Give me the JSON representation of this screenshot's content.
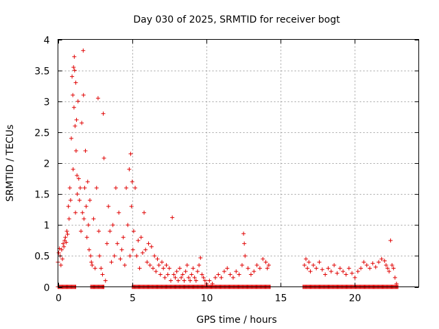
{
  "chart_data": {
    "type": "scatter",
    "title": "Day 030 of 2025, SRMTID for receiver bogt",
    "xlabel": "GPS time / hours",
    "ylabel": "SRMTID / TECUs",
    "xlim": [
      0,
      24.3
    ],
    "ylim": [
      0,
      4
    ],
    "x_ticks": [
      0,
      5,
      10,
      15,
      20
    ],
    "y_ticks": [
      0,
      0.5,
      1,
      1.5,
      2,
      2.5,
      3,
      3.5,
      4
    ],
    "y_tick_labels": [
      "0",
      "0.5",
      "1",
      "1.5",
      "2",
      "2.5",
      "3",
      "3.5",
      "4"
    ],
    "grid": true,
    "marker": "+",
    "color": "#e00000",
    "series": [
      {
        "name": "SRMTID",
        "points": [
          [
            0.0,
            0.4
          ],
          [
            0.05,
            0.55
          ],
          [
            0.1,
            0.62
          ],
          [
            0.15,
            0.5
          ],
          [
            0.2,
            0.35
          ],
          [
            0.25,
            0.6
          ],
          [
            0.3,
            0.45
          ],
          [
            0.35,
            0.7
          ],
          [
            0.4,
            0.65
          ],
          [
            0.45,
            0.75
          ],
          [
            0.5,
            0.8
          ],
          [
            0.55,
            0.72
          ],
          [
            0.6,
            0.9
          ],
          [
            0.65,
            0.85
          ],
          [
            0.7,
            1.3
          ],
          [
            0.75,
            1.1
          ],
          [
            0.8,
            1.6
          ],
          [
            0.85,
            1.4
          ],
          [
            0.9,
            2.4
          ],
          [
            0.95,
            3.4
          ],
          [
            1.0,
            3.1
          ],
          [
            1.02,
            1.9
          ],
          [
            1.05,
            3.55
          ],
          [
            1.08,
            2.9
          ],
          [
            1.1,
            3.72
          ],
          [
            1.12,
            3.5
          ],
          [
            1.15,
            2.6
          ],
          [
            1.18,
            1.2
          ],
          [
            1.2,
            3.3
          ],
          [
            1.22,
            2.2
          ],
          [
            1.25,
            2.7
          ],
          [
            1.28,
            1.8
          ],
          [
            1.3,
            1.5
          ],
          [
            1.35,
            3.0
          ],
          [
            1.4,
            1.75
          ],
          [
            1.45,
            1.4
          ],
          [
            1.5,
            1.6
          ],
          [
            1.55,
            0.9
          ],
          [
            1.6,
            2.65
          ],
          [
            1.65,
            1.2
          ],
          [
            1.7,
            3.82
          ],
          [
            1.72,
            3.1
          ],
          [
            1.75,
            1.1
          ],
          [
            1.8,
            1.6
          ],
          [
            1.85,
            2.2
          ],
          [
            1.9,
            1.3
          ],
          [
            1.95,
            0.8
          ],
          [
            2.0,
            1.7
          ],
          [
            2.05,
            1.0
          ],
          [
            2.1,
            0.6
          ],
          [
            2.15,
            1.4
          ],
          [
            2.2,
            0.5
          ],
          [
            2.25,
            0.4
          ],
          [
            2.3,
            0.35
          ],
          [
            2.4,
            1.1
          ],
          [
            2.5,
            0.3
          ],
          [
            2.6,
            1.6
          ],
          [
            2.7,
            3.05
          ],
          [
            2.75,
            0.9
          ],
          [
            2.8,
            0.5
          ],
          [
            2.9,
            0.3
          ],
          [
            3.0,
            0.2
          ],
          [
            3.05,
            2.8
          ],
          [
            3.1,
            2.08
          ],
          [
            3.2,
            0.1
          ],
          [
            3.3,
            0.7
          ],
          [
            3.4,
            1.3
          ],
          [
            3.5,
            0.9
          ],
          [
            3.6,
            0.4
          ],
          [
            3.7,
            1.0
          ],
          [
            3.8,
            0.5
          ],
          [
            3.9,
            1.6
          ],
          [
            4.0,
            0.7
          ],
          [
            4.1,
            1.2
          ],
          [
            4.2,
            0.45
          ],
          [
            4.3,
            0.6
          ],
          [
            4.4,
            0.8
          ],
          [
            4.5,
            0.35
          ],
          [
            4.6,
            1.6
          ],
          [
            4.7,
            1.0
          ],
          [
            4.8,
            1.9
          ],
          [
            4.85,
            0.5
          ],
          [
            4.9,
            2.15
          ],
          [
            4.95,
            1.3
          ],
          [
            5.0,
            1.7
          ],
          [
            5.05,
            0.6
          ],
          [
            5.1,
            0.9
          ],
          [
            5.2,
            1.6
          ],
          [
            5.3,
            0.5
          ],
          [
            5.4,
            0.75
          ],
          [
            5.5,
            0.3
          ],
          [
            5.6,
            0.8
          ],
          [
            5.7,
            0.55
          ],
          [
            5.8,
            1.2
          ],
          [
            5.9,
            0.6
          ],
          [
            6.0,
            0.4
          ],
          [
            6.1,
            0.7
          ],
          [
            6.2,
            0.35
          ],
          [
            6.3,
            0.65
          ],
          [
            6.4,
            0.3
          ],
          [
            6.5,
            0.5
          ],
          [
            6.6,
            0.25
          ],
          [
            6.7,
            0.45
          ],
          [
            6.8,
            0.35
          ],
          [
            6.9,
            0.2
          ],
          [
            7.0,
            0.4
          ],
          [
            7.1,
            0.3
          ],
          [
            7.2,
            0.15
          ],
          [
            7.3,
            0.35
          ],
          [
            7.4,
            0.2
          ],
          [
            7.5,
            0.3
          ],
          [
            7.6,
            0.1
          ],
          [
            7.7,
            1.12
          ],
          [
            7.8,
            0.2
          ],
          [
            7.9,
            0.15
          ],
          [
            8.0,
            0.25
          ],
          [
            8.1,
            0.1
          ],
          [
            8.2,
            0.3
          ],
          [
            8.3,
            0.15
          ],
          [
            8.4,
            0.2
          ],
          [
            8.5,
            0.1
          ],
          [
            8.6,
            0.25
          ],
          [
            8.7,
            0.35
          ],
          [
            8.8,
            0.15
          ],
          [
            8.9,
            0.1
          ],
          [
            9.0,
            0.2
          ],
          [
            9.1,
            0.3
          ],
          [
            9.2,
            0.15
          ],
          [
            9.3,
            0.1
          ],
          [
            9.4,
            0.25
          ],
          [
            9.5,
            0.35
          ],
          [
            9.6,
            0.47
          ],
          [
            9.7,
            0.2
          ],
          [
            9.8,
            0.15
          ],
          [
            9.9,
            0.1
          ],
          [
            10.0,
            0.05
          ],
          [
            10.2,
            0.1
          ],
          [
            10.4,
            0.05
          ],
          [
            10.6,
            0.15
          ],
          [
            10.8,
            0.2
          ],
          [
            11.0,
            0.15
          ],
          [
            11.2,
            0.25
          ],
          [
            11.4,
            0.3
          ],
          [
            11.6,
            0.2
          ],
          [
            11.8,
            0.15
          ],
          [
            12.0,
            0.25
          ],
          [
            12.2,
            0.2
          ],
          [
            12.4,
            0.35
          ],
          [
            12.5,
            0.86
          ],
          [
            12.55,
            0.7
          ],
          [
            12.6,
            0.5
          ],
          [
            12.8,
            0.3
          ],
          [
            13.0,
            0.2
          ],
          [
            13.2,
            0.25
          ],
          [
            13.4,
            0.35
          ],
          [
            13.6,
            0.3
          ],
          [
            13.8,
            0.45
          ],
          [
            14.0,
            0.4
          ],
          [
            14.1,
            0.3
          ],
          [
            14.2,
            0.35
          ],
          [
            16.6,
            0.35
          ],
          [
            16.7,
            0.45
          ],
          [
            16.8,
            0.3
          ],
          [
            16.9,
            0.4
          ],
          [
            17.0,
            0.25
          ],
          [
            17.2,
            0.35
          ],
          [
            17.4,
            0.3
          ],
          [
            17.6,
            0.4
          ],
          [
            17.8,
            0.28
          ],
          [
            18.0,
            0.2
          ],
          [
            18.2,
            0.3
          ],
          [
            18.4,
            0.25
          ],
          [
            18.6,
            0.35
          ],
          [
            18.8,
            0.22
          ],
          [
            19.0,
            0.3
          ],
          [
            19.2,
            0.25
          ],
          [
            19.4,
            0.2
          ],
          [
            19.6,
            0.3
          ],
          [
            19.8,
            0.22
          ],
          [
            20.0,
            0.15
          ],
          [
            20.2,
            0.25
          ],
          [
            20.4,
            0.3
          ],
          [
            20.6,
            0.4
          ],
          [
            20.8,
            0.35
          ],
          [
            21.0,
            0.3
          ],
          [
            21.2,
            0.38
          ],
          [
            21.4,
            0.32
          ],
          [
            21.6,
            0.4
          ],
          [
            21.8,
            0.45
          ],
          [
            22.0,
            0.42
          ],
          [
            22.1,
            0.35
          ],
          [
            22.2,
            0.3
          ],
          [
            22.3,
            0.25
          ],
          [
            22.4,
            0.75
          ],
          [
            22.5,
            0.35
          ],
          [
            22.6,
            0.3
          ],
          [
            22.7,
            0.15
          ],
          [
            22.8,
            0.05
          ]
        ],
        "zero_runs": [
          [
            0.0,
            1.2
          ],
          [
            2.2,
            3.1
          ],
          [
            5.0,
            14.3
          ],
          [
            16.5,
            22.9
          ]
        ]
      }
    ]
  }
}
